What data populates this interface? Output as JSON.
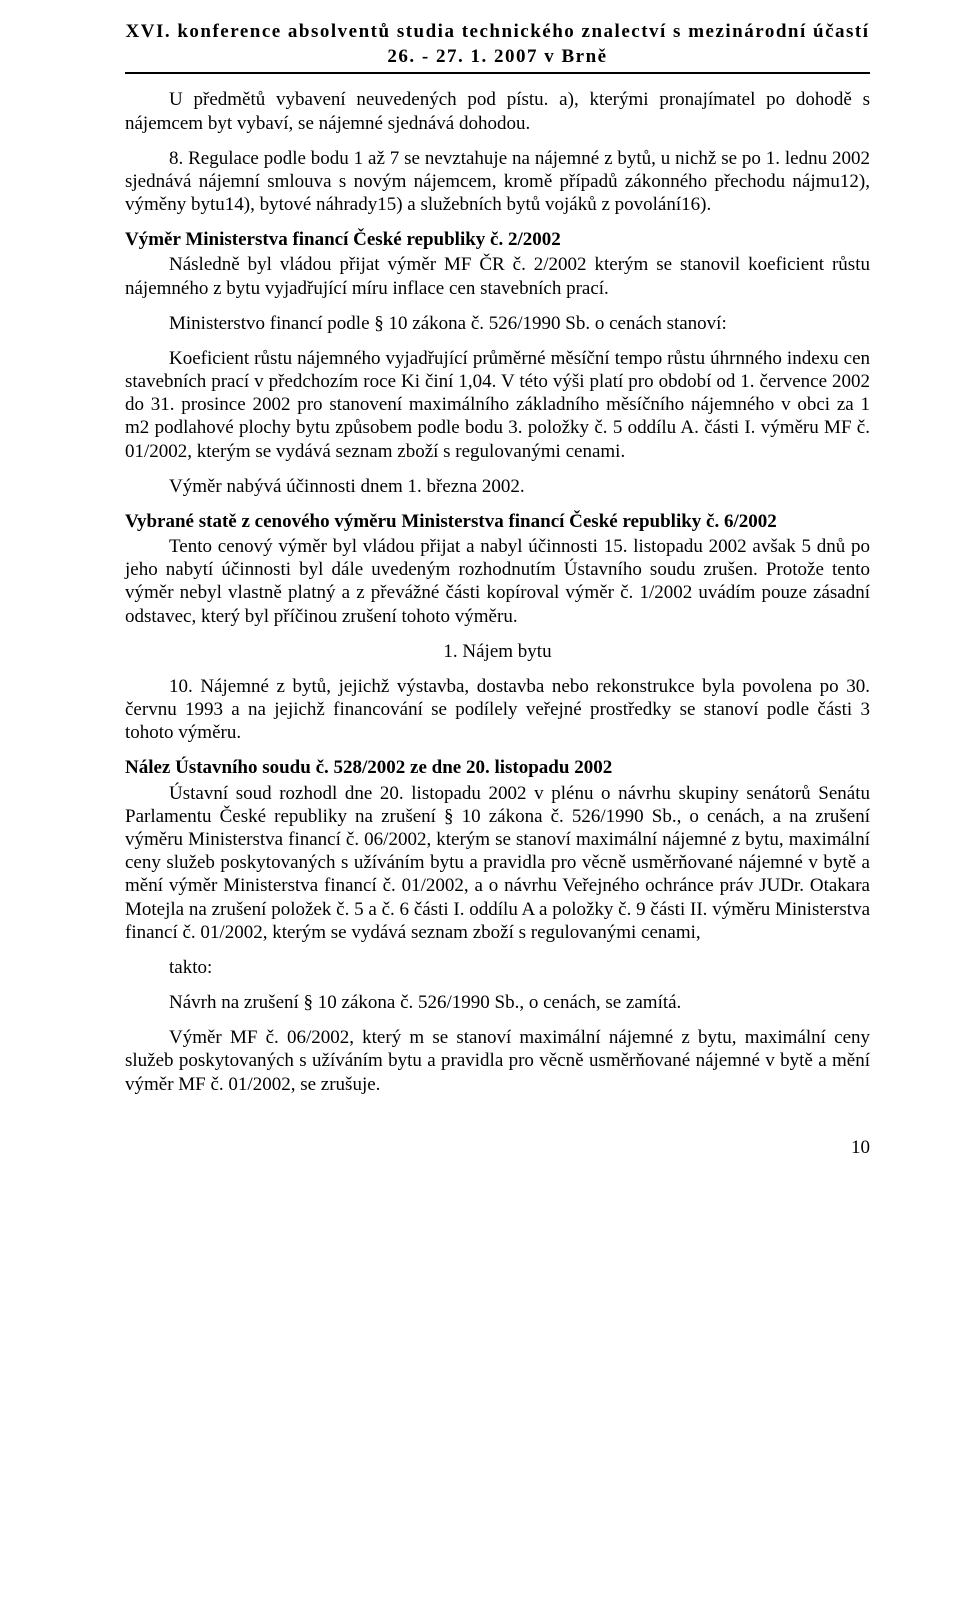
{
  "header": {
    "line1": "XVI. konference absolventů studia technického znalectví s mezinárodní účastí",
    "line2": "26. - 27. 1. 2007 v Brně"
  },
  "paragraphs": {
    "p1": "U předmětů vybavení neuvedených pod pístu. a), kterými pronajímatel po dohodě s nájemcem byt vybaví, se nájemné sjednává dohodou.",
    "p2": "8. Regulace podle bodu 1 až 7 se nevztahuje na nájemné z bytů, u nichž se po 1. lednu 2002 sjednává nájemní smlouva s novým nájemcem, kromě případů zákonného přechodu nájmu12), výměny bytu14), bytové náhrady15) a služebních bytů vojáků z povolání16).",
    "h1": "Výměr Ministerstva financí České republiky č. 2/2002",
    "p3": "Následně byl vládou přijat výměr MF ČR č. 2/2002 kterým se stanovil koeficient růstu nájemného z bytu vyjadřující míru inflace cen stavebních prací.",
    "p4": "Ministerstvo financí podle § 10 zákona č. 526/1990 Sb. o cenách stanoví:",
    "p5": "Koeficient růstu nájemného vyjadřující průměrné měsíční tempo růstu úhrnného indexu cen stavebních prací v předchozím roce Ki činí 1,04. V této výši platí pro období od 1. července 2002 do 31. prosince 2002 pro stanovení maximálního základního měsíčního nájemného v obci za 1 m2 podlahové plochy bytu způsobem podle bodu 3. položky č. 5 oddílu A. části I. výměru MF č. 01/2002, kterým se vydává seznam zboží s regulovanými cenami.",
    "p6": "Výměr nabývá účinnosti dnem 1. března 2002.",
    "h2": "Vybrané statě z cenového výměru Ministerstva financí České republiky č. 6/2002",
    "p7": "Tento cenový výměr byl vládou přijat a nabyl účinnosti 15. listopadu 2002 avšak 5 dnů po jeho nabytí účinnosti byl dále uvedeným rozhodnutím Ústavního soudu zrušen. Protože tento výměr nebyl vlastně platný a z převážné části kopíroval výměr č. 1/2002 uvádím pouze zásadní odstavec, který byl příčinou zrušení tohoto výměru.",
    "c1": "1. Nájem bytu",
    "p8": "10. Nájemné z bytů, jejichž výstavba, dostavba nebo rekonstrukce byla povolena po 30. červnu 1993 a na jejichž financování se podílely veřejné prostředky se stanoví podle části 3 tohoto výměru.",
    "h3": "Nález Ústavního soudu č. 528/2002 ze dne 20. listopadu 2002",
    "p9": "Ústavní soud rozhodl dne 20. listopadu 2002 v plénu o návrhu skupiny senátorů Senátu Parlamentu České republiky na zrušení § 10 zákona č. 526/1990 Sb., o cenách, a na zrušení výměru Ministerstva financí č. 06/2002, kterým se stanoví maximální nájemné z bytu, maximální ceny služeb poskytovaných s užíváním bytu a pravidla pro věcně usměrňované nájemné v bytě a mění výměr Ministerstva financí č. 01/2002, a o návrhu Veřejného ochránce práv JUDr. Otakara Motejla na zrušení položek č. 5 a č. 6 části I. oddílu A a položky č. 9 části II. výměru Ministerstva financí č. 01/2002, kterým se vydává seznam zboží s regulovanými cenami,",
    "p10": "takto:",
    "p11": "Návrh na zrušení § 10 zákona č. 526/1990 Sb., o cenách, se zamítá.",
    "p12": "Výměr MF č. 06/2002, který m se stanoví maximální nájemné z bytu, maximální ceny služeb poskytovaných s užíváním bytu a pravidla pro věcně usměrňované nájemné v bytě a mění výměr MF č. 01/2002, se zrušuje."
  },
  "pagenum": "10"
}
